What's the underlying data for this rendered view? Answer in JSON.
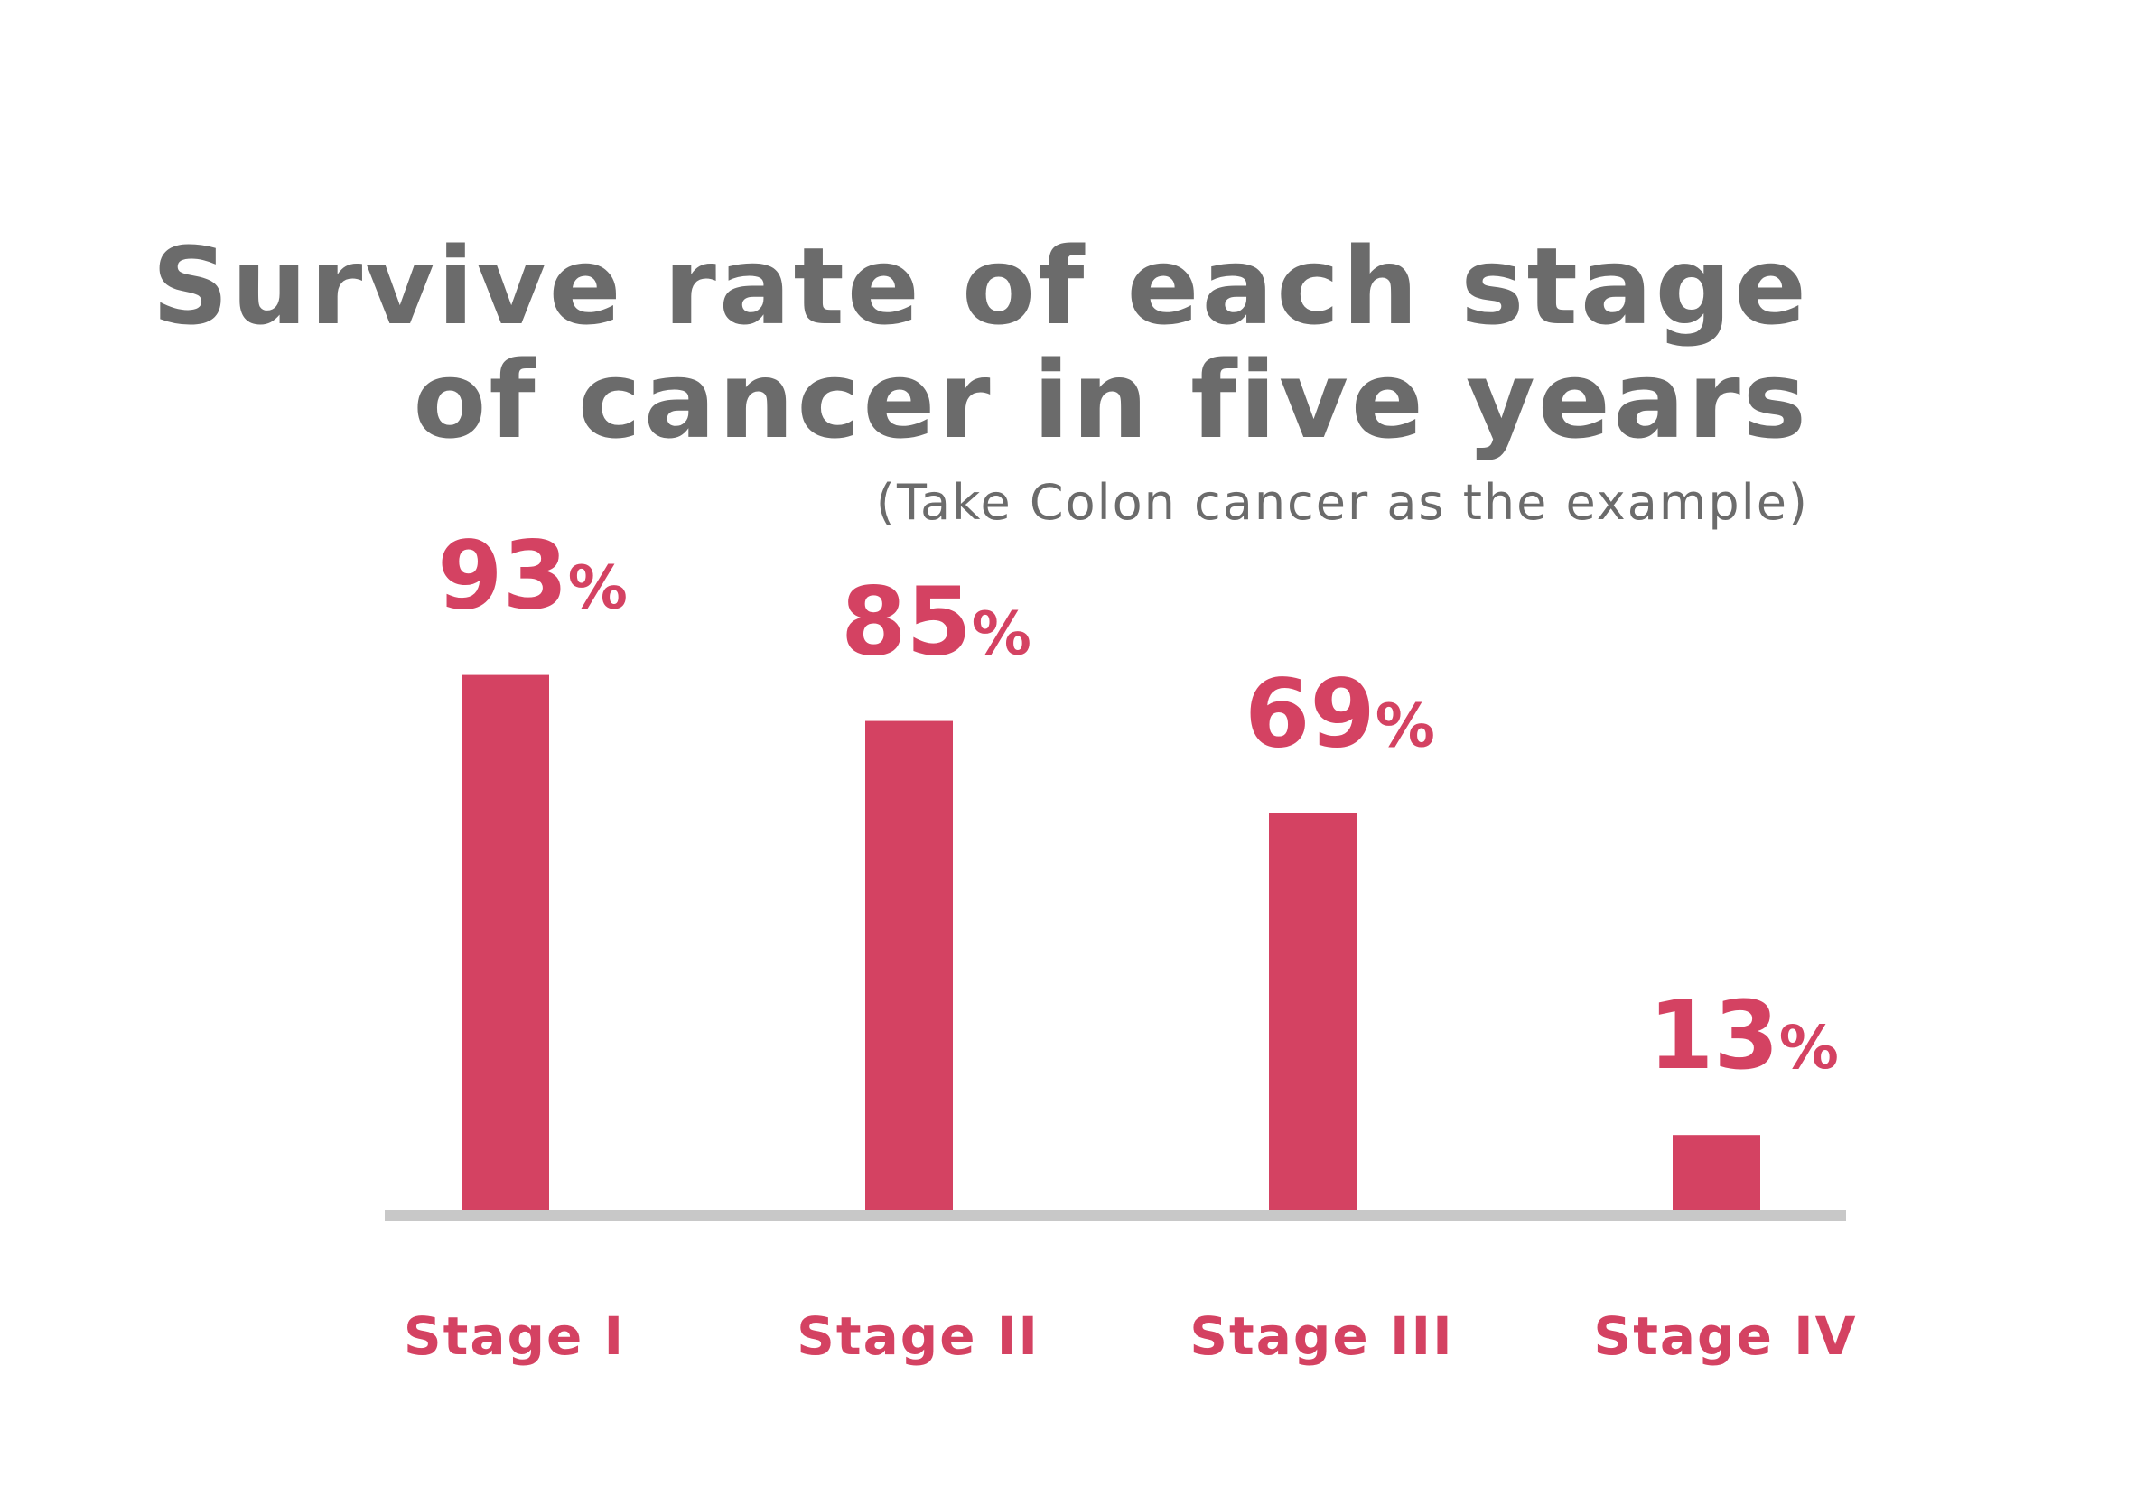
{
  "chart_data": {
    "type": "bar",
    "title": [
      "Survive rate of each stage",
      "of cancer in five years"
    ],
    "subtitle": "(Take Colon cancer as the example)",
    "categories": [
      "Stage I",
      "Stage II",
      "Stage III",
      "Stage IV"
    ],
    "values": [
      93,
      85,
      69,
      13
    ],
    "value_labels": [
      "93%",
      "85%",
      "69%",
      "13%"
    ],
    "color": "#d44262",
    "ylim": [
      0,
      100
    ]
  }
}
